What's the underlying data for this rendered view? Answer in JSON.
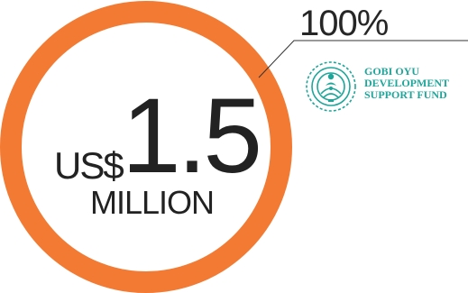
{
  "chart_data": {
    "type": "pie",
    "slices": [
      {
        "label": "100%",
        "value": 100,
        "color": "#f37a32"
      }
    ],
    "annotation": "100%"
  },
  "headline": {
    "currency": "US$",
    "amount": "1.5",
    "unit": "MILLION"
  },
  "organization": {
    "lines": [
      "GOBI OYU",
      "DEVELOPMENT",
      "SUPPORT FUND"
    ],
    "logo_icon": "gobi-oyu-emblem-icon",
    "color": "#1fa69a"
  },
  "colors": {
    "ring": "#f37a32",
    "leader": "#333333",
    "text": "#222222"
  }
}
